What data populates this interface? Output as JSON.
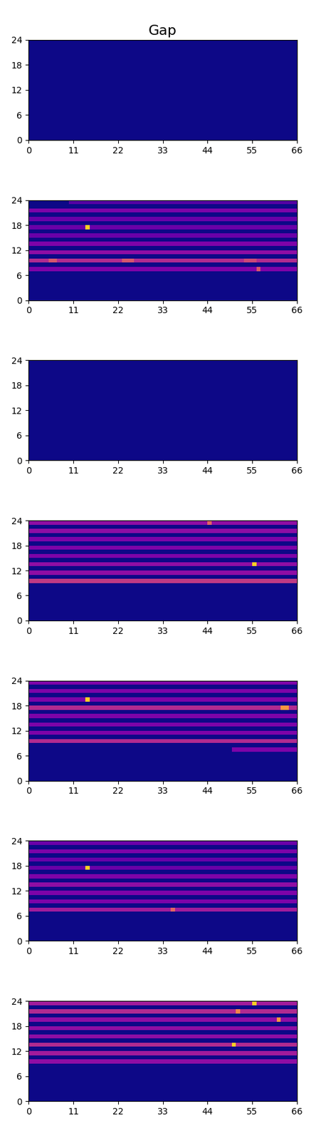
{
  "chart_data": [
    {
      "type": "heatmap",
      "title": "Gap",
      "xlim": [
        0,
        66
      ],
      "ylim": [
        0,
        24
      ],
      "xticks": [
        0,
        11,
        22,
        33,
        44,
        55,
        66
      ],
      "yticks": [
        0,
        6,
        12,
        18,
        24
      ],
      "color_range": [
        0,
        1
      ],
      "cells": []
    },
    {
      "type": "heatmap",
      "xlim": [
        0,
        66
      ],
      "ylim": [
        0,
        24
      ],
      "xticks": [
        0,
        11,
        22,
        33,
        44,
        55,
        66
      ],
      "yticks": [
        0,
        6,
        12,
        18,
        24
      ],
      "color_range": [
        0,
        1
      ],
      "cells": [
        {
          "row": 7,
          "x0": 0,
          "x1": 66,
          "value": 0.25
        },
        {
          "row": 9,
          "x0": 0,
          "x1": 66,
          "value": 0.4
        },
        {
          "row": 11,
          "x0": 0,
          "x1": 66,
          "value": 0.3
        },
        {
          "row": 13,
          "x0": 0,
          "x1": 66,
          "value": 0.25
        },
        {
          "row": 15,
          "x0": 0,
          "x1": 66,
          "value": 0.2
        },
        {
          "row": 17,
          "x0": 0,
          "x1": 66,
          "value": 0.2
        },
        {
          "row": 19,
          "x0": 0,
          "x1": 66,
          "value": 0.2
        },
        {
          "row": 21,
          "x0": 0,
          "x1": 66,
          "value": 0.25
        },
        {
          "row": 23,
          "x0": 10,
          "x1": 66,
          "value": 0.15
        },
        {
          "row": 9,
          "x0": 5,
          "x1": 7,
          "value": 0.55
        },
        {
          "row": 9,
          "x0": 23,
          "x1": 26,
          "value": 0.55
        },
        {
          "row": 9,
          "x0": 53,
          "x1": 56,
          "value": 0.5
        },
        {
          "row": 7,
          "x0": 56,
          "x1": 57,
          "value": 0.55
        },
        {
          "row": 17,
          "x0": 14,
          "x1": 15,
          "value": 0.9
        }
      ]
    },
    {
      "type": "heatmap",
      "xlim": [
        0,
        66
      ],
      "ylim": [
        0,
        24
      ],
      "xticks": [
        0,
        11,
        22,
        33,
        44,
        55,
        66
      ],
      "yticks": [
        0,
        6,
        12,
        18,
        24
      ],
      "color_range": [
        0,
        1
      ],
      "cells": []
    },
    {
      "type": "heatmap",
      "xlim": [
        0,
        66
      ],
      "ylim": [
        0,
        24
      ],
      "xticks": [
        0,
        11,
        22,
        33,
        44,
        55,
        66
      ],
      "yticks": [
        0,
        6,
        12,
        18,
        24
      ],
      "color_range": [
        0,
        1
      ],
      "cells": [
        {
          "row": 9,
          "x0": 0,
          "x1": 66,
          "value": 0.45
        },
        {
          "row": 11,
          "x0": 0,
          "x1": 66,
          "value": 0.3
        },
        {
          "row": 13,
          "x0": 0,
          "x1": 66,
          "value": 0.3
        },
        {
          "row": 15,
          "x0": 0,
          "x1": 66,
          "value": 0.25
        },
        {
          "row": 17,
          "x0": 0,
          "x1": 66,
          "value": 0.25
        },
        {
          "row": 19,
          "x0": 0,
          "x1": 66,
          "value": 0.25
        },
        {
          "row": 21,
          "x0": 0,
          "x1": 66,
          "value": 0.3
        },
        {
          "row": 23,
          "x0": 0,
          "x1": 66,
          "value": 0.3
        },
        {
          "row": 13,
          "x0": 55,
          "x1": 56,
          "value": 0.9
        },
        {
          "row": 23,
          "x0": 44,
          "x1": 45,
          "value": 0.6
        }
      ]
    },
    {
      "type": "heatmap",
      "xlim": [
        0,
        66
      ],
      "ylim": [
        0,
        24
      ],
      "xticks": [
        0,
        11,
        22,
        33,
        44,
        55,
        66
      ],
      "yticks": [
        0,
        6,
        12,
        18,
        24
      ],
      "color_range": [
        0,
        1
      ],
      "cells": [
        {
          "row": 7,
          "x0": 50,
          "x1": 66,
          "value": 0.25
        },
        {
          "row": 9,
          "x0": 0,
          "x1": 66,
          "value": 0.4
        },
        {
          "row": 11,
          "x0": 0,
          "x1": 66,
          "value": 0.25
        },
        {
          "row": 13,
          "x0": 0,
          "x1": 66,
          "value": 0.25
        },
        {
          "row": 15,
          "x0": 0,
          "x1": 66,
          "value": 0.25
        },
        {
          "row": 17,
          "x0": 0,
          "x1": 66,
          "value": 0.4
        },
        {
          "row": 19,
          "x0": 0,
          "x1": 66,
          "value": 0.25
        },
        {
          "row": 21,
          "x0": 0,
          "x1": 66,
          "value": 0.25
        },
        {
          "row": 23,
          "x0": 0,
          "x1": 66,
          "value": 0.25
        },
        {
          "row": 19,
          "x0": 14,
          "x1": 15,
          "value": 0.9
        },
        {
          "row": 17,
          "x0": 62,
          "x1": 64,
          "value": 0.75
        }
      ]
    },
    {
      "type": "heatmap",
      "xlim": [
        0,
        66
      ],
      "ylim": [
        0,
        24
      ],
      "xticks": [
        0,
        11,
        22,
        33,
        44,
        55,
        66
      ],
      "yticks": [
        0,
        6,
        12,
        18,
        24
      ],
      "color_range": [
        0,
        1
      ],
      "cells": [
        {
          "row": 7,
          "x0": 0,
          "x1": 66,
          "value": 0.35
        },
        {
          "row": 9,
          "x0": 0,
          "x1": 66,
          "value": 0.25
        },
        {
          "row": 11,
          "x0": 0,
          "x1": 66,
          "value": 0.25
        },
        {
          "row": 13,
          "x0": 0,
          "x1": 66,
          "value": 0.3
        },
        {
          "row": 15,
          "x0": 0,
          "x1": 66,
          "value": 0.25
        },
        {
          "row": 17,
          "x0": 0,
          "x1": 66,
          "value": 0.2
        },
        {
          "row": 19,
          "x0": 0,
          "x1": 66,
          "value": 0.2
        },
        {
          "row": 21,
          "x0": 0,
          "x1": 66,
          "value": 0.25
        },
        {
          "row": 23,
          "x0": 0,
          "x1": 66,
          "value": 0.2
        },
        {
          "row": 17,
          "x0": 14,
          "x1": 15,
          "value": 0.9
        },
        {
          "row": 7,
          "x0": 35,
          "x1": 36,
          "value": 0.6
        }
      ]
    },
    {
      "type": "heatmap",
      "xlim": [
        0,
        66
      ],
      "ylim": [
        0,
        24
      ],
      "xticks": [
        0,
        11,
        22,
        33,
        44,
        55,
        66
      ],
      "yticks": [
        0,
        6,
        12,
        18,
        24
      ],
      "color_range": [
        0,
        1
      ],
      "cells": [
        {
          "row": 9,
          "x0": 0,
          "x1": 66,
          "value": 0.3
        },
        {
          "row": 11,
          "x0": 0,
          "x1": 66,
          "value": 0.35
        },
        {
          "row": 13,
          "x0": 0,
          "x1": 66,
          "value": 0.4
        },
        {
          "row": 15,
          "x0": 0,
          "x1": 66,
          "value": 0.3
        },
        {
          "row": 17,
          "x0": 0,
          "x1": 66,
          "value": 0.3
        },
        {
          "row": 19,
          "x0": 0,
          "x1": 66,
          "value": 0.3
        },
        {
          "row": 21,
          "x0": 0,
          "x1": 66,
          "value": 0.4
        },
        {
          "row": 23,
          "x0": 0,
          "x1": 66,
          "value": 0.35
        },
        {
          "row": 13,
          "x0": 50,
          "x1": 51,
          "value": 0.9
        },
        {
          "row": 23,
          "x0": 55,
          "x1": 56,
          "value": 0.9
        },
        {
          "row": 19,
          "x0": 61,
          "x1": 62,
          "value": 0.75
        },
        {
          "row": 21,
          "x0": 51,
          "x1": 52,
          "value": 0.7
        }
      ]
    }
  ]
}
